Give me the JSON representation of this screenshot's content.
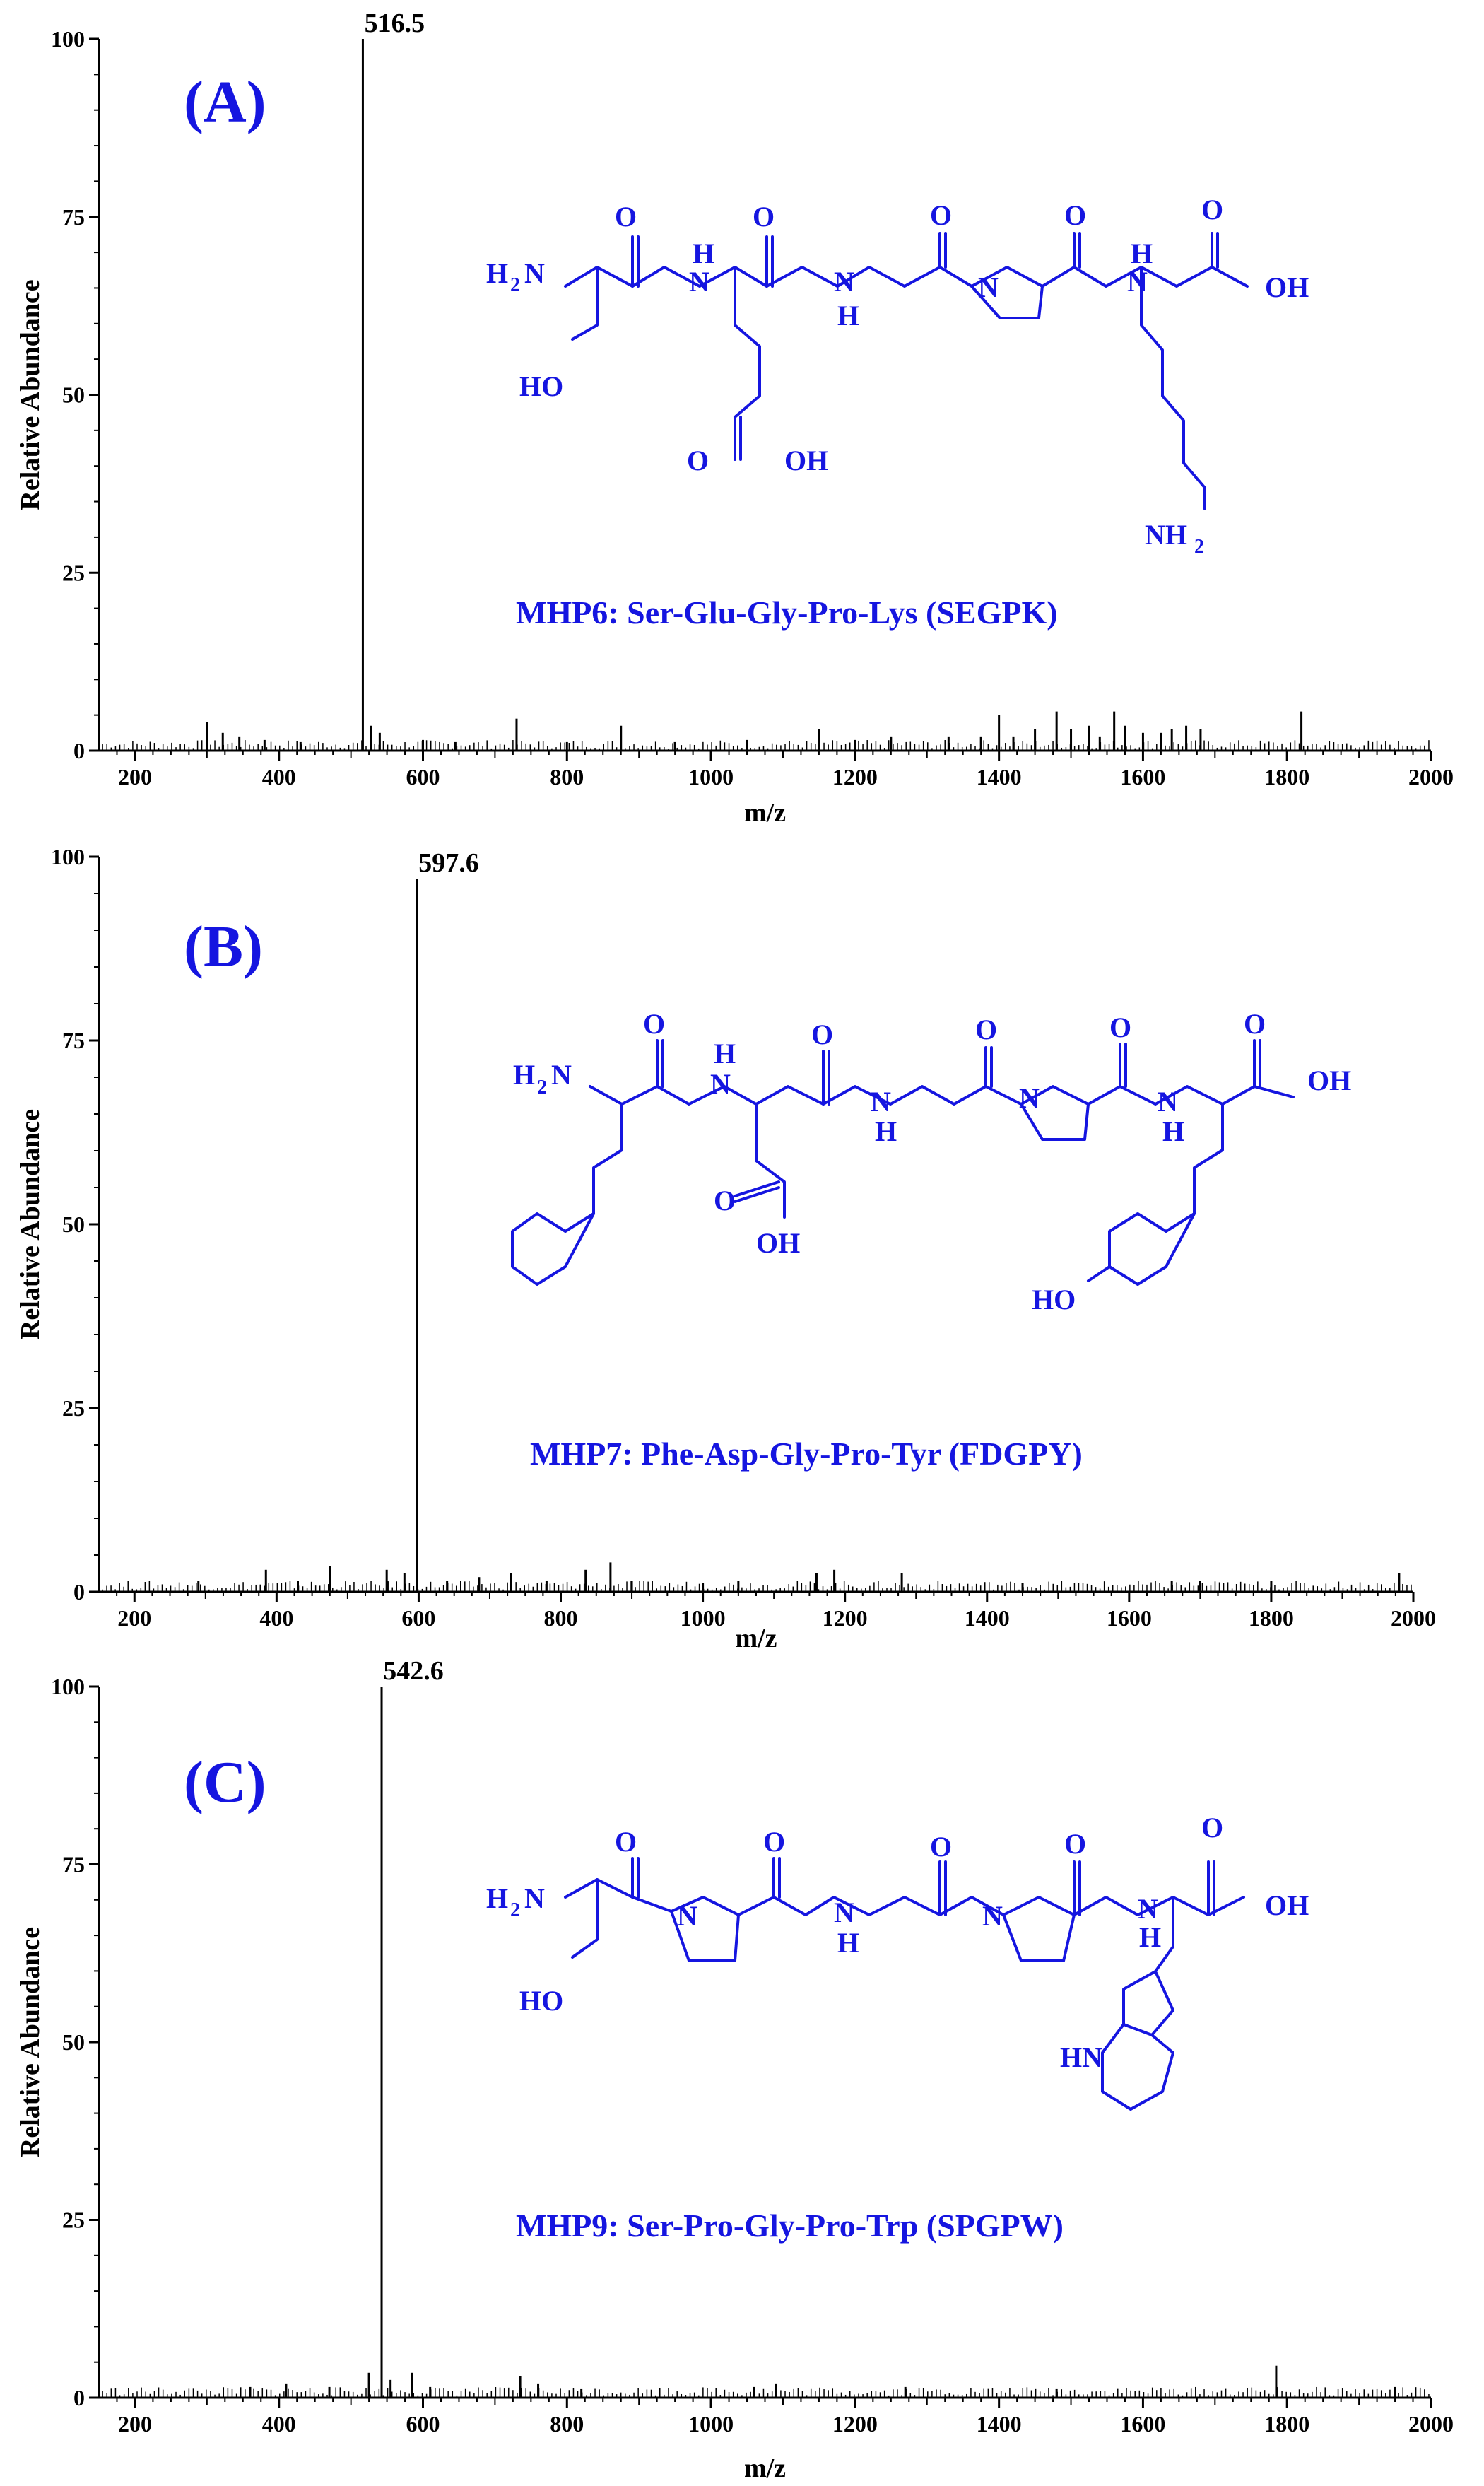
{
  "chart_data": [
    {
      "type": "bar",
      "panel": "(A)",
      "xlabel": "m/z",
      "ylabel": "Relative Abundance",
      "xlim": [
        150,
        2000
      ],
      "ylim": [
        0,
        100
      ],
      "xticks": [
        "200",
        "400",
        "600",
        "800",
        "1000",
        "1200",
        "1400",
        "1600",
        "1800",
        "2000"
      ],
      "yticks": [
        "0",
        "25",
        "50",
        "75",
        "100"
      ],
      "peak_label": "516.5",
      "caption": "MHP6:  Ser-Glu-Gly-Pro-Lys  (SEGPK)",
      "structure_atoms": [
        "O",
        "O",
        "O",
        "O",
        "O",
        "H",
        "H",
        "N",
        "N",
        "N",
        "N",
        "H",
        "OH",
        "HO",
        "OH",
        "NH",
        "2",
        "H",
        "2",
        "N"
      ],
      "peaks": [
        {
          "mz": 516.5,
          "abundance": 100
        },
        {
          "mz": 300,
          "abundance": 4
        },
        {
          "mz": 322,
          "abundance": 2.5
        },
        {
          "mz": 345,
          "abundance": 2
        },
        {
          "mz": 380,
          "abundance": 1.5
        },
        {
          "mz": 430,
          "abundance": 1.2
        },
        {
          "mz": 528,
          "abundance": 3.5
        },
        {
          "mz": 540,
          "abundance": 2.5
        },
        {
          "mz": 600,
          "abundance": 1.5
        },
        {
          "mz": 645,
          "abundance": 1.2
        },
        {
          "mz": 730,
          "abundance": 4.5
        },
        {
          "mz": 800,
          "abundance": 1.2
        },
        {
          "mz": 875,
          "abundance": 3.5
        },
        {
          "mz": 950,
          "abundance": 1.2
        },
        {
          "mz": 1050,
          "abundance": 1.5
        },
        {
          "mz": 1150,
          "abundance": 3
        },
        {
          "mz": 1200,
          "abundance": 1.5
        },
        {
          "mz": 1250,
          "abundance": 2
        },
        {
          "mz": 1330,
          "abundance": 2
        },
        {
          "mz": 1375,
          "abundance": 2
        },
        {
          "mz": 1400,
          "abundance": 5
        },
        {
          "mz": 1420,
          "abundance": 2
        },
        {
          "mz": 1450,
          "abundance": 3
        },
        {
          "mz": 1480,
          "abundance": 5.5
        },
        {
          "mz": 1500,
          "abundance": 3
        },
        {
          "mz": 1525,
          "abundance": 3.5
        },
        {
          "mz": 1540,
          "abundance": 2
        },
        {
          "mz": 1560,
          "abundance": 5.5
        },
        {
          "mz": 1575,
          "abundance": 3.5
        },
        {
          "mz": 1600,
          "abundance": 2.5
        },
        {
          "mz": 1625,
          "abundance": 2.5
        },
        {
          "mz": 1640,
          "abundance": 3
        },
        {
          "mz": 1660,
          "abundance": 3.5
        },
        {
          "mz": 1680,
          "abundance": 3
        },
        {
          "mz": 1820,
          "abundance": 5.5
        }
      ]
    },
    {
      "type": "bar",
      "panel": "(B)",
      "xlabel": "m/z",
      "ylabel": "Relative Abundance",
      "xlim": [
        150,
        2000
      ],
      "ylim": [
        0,
        100
      ],
      "xticks": [
        "200",
        "400",
        "600",
        "800",
        "1000",
        "1200",
        "1400",
        "1600",
        "1800",
        "2000"
      ],
      "yticks": [
        "0",
        "25",
        "50",
        "75",
        "100"
      ],
      "peak_label": "597.6",
      "caption": "MHP7:  Phe-Asp-Gly-Pro-Tyr  (FDGPY)",
      "structure_atoms": [
        "O",
        "O",
        "O",
        "O",
        "O",
        "H",
        "N",
        "N",
        "N",
        "N",
        "H",
        "H",
        "H",
        "OH",
        "O",
        "OH",
        "HO"
      ],
      "peaks": [
        {
          "mz": 597.6,
          "abundance": 97
        },
        {
          "mz": 290,
          "abundance": 1.5
        },
        {
          "mz": 385,
          "abundance": 3
        },
        {
          "mz": 430,
          "abundance": 1.5
        },
        {
          "mz": 475,
          "abundance": 3.5
        },
        {
          "mz": 555,
          "abundance": 3
        },
        {
          "mz": 580,
          "abundance": 2.5
        },
        {
          "mz": 640,
          "abundance": 1.5
        },
        {
          "mz": 685,
          "abundance": 2
        },
        {
          "mz": 730,
          "abundance": 2.5
        },
        {
          "mz": 780,
          "abundance": 1.5
        },
        {
          "mz": 835,
          "abundance": 3
        },
        {
          "mz": 870,
          "abundance": 4
        },
        {
          "mz": 900,
          "abundance": 1.5
        },
        {
          "mz": 1000,
          "abundance": 1.2
        },
        {
          "mz": 1050,
          "abundance": 1.5
        },
        {
          "mz": 1160,
          "abundance": 2.5
        },
        {
          "mz": 1185,
          "abundance": 3
        },
        {
          "mz": 1280,
          "abundance": 2.5
        },
        {
          "mz": 1450,
          "abundance": 1.2
        },
        {
          "mz": 1660,
          "abundance": 1.5
        },
        {
          "mz": 1700,
          "abundance": 1.5
        },
        {
          "mz": 1800,
          "abundance": 1.5
        },
        {
          "mz": 1980,
          "abundance": 2.5
        }
      ]
    },
    {
      "type": "bar",
      "panel": "(C)",
      "xlabel": "m/z",
      "ylabel": "Relative Abundance",
      "xlim": [
        150,
        2000
      ],
      "ylim": [
        0,
        100
      ],
      "xticks": [
        "200",
        "400",
        "600",
        "800",
        "1000",
        "1200",
        "1400",
        "1600",
        "1800",
        "2000"
      ],
      "yticks": [
        "0",
        "25",
        "50",
        "75",
        "100"
      ],
      "peak_label": "542.6",
      "caption": "MHP9:  Ser-Pro-Gly-Pro-Trp  (SPGPW)",
      "structure_atoms": [
        "O",
        "O",
        "O",
        "O",
        "O",
        "N",
        "N",
        "N",
        "N",
        "H",
        "H",
        "OH",
        "HO",
        "HN",
        "H",
        "2",
        "N"
      ],
      "peaks": [
        {
          "mz": 542.6,
          "abundance": 100
        },
        {
          "mz": 360,
          "abundance": 1.5
        },
        {
          "mz": 410,
          "abundance": 2
        },
        {
          "mz": 470,
          "abundance": 1.5
        },
        {
          "mz": 525,
          "abundance": 3.5
        },
        {
          "mz": 555,
          "abundance": 2.5
        },
        {
          "mz": 585,
          "abundance": 3.5
        },
        {
          "mz": 610,
          "abundance": 1.5
        },
        {
          "mz": 735,
          "abundance": 3
        },
        {
          "mz": 760,
          "abundance": 2
        },
        {
          "mz": 820,
          "abundance": 1.2
        },
        {
          "mz": 1060,
          "abundance": 1.5
        },
        {
          "mz": 1090,
          "abundance": 2
        },
        {
          "mz": 1270,
          "abundance": 1.5
        },
        {
          "mz": 1480,
          "abundance": 1.2
        },
        {
          "mz": 1785,
          "abundance": 4.5
        },
        {
          "mz": 1950,
          "abundance": 1.5
        }
      ]
    }
  ]
}
